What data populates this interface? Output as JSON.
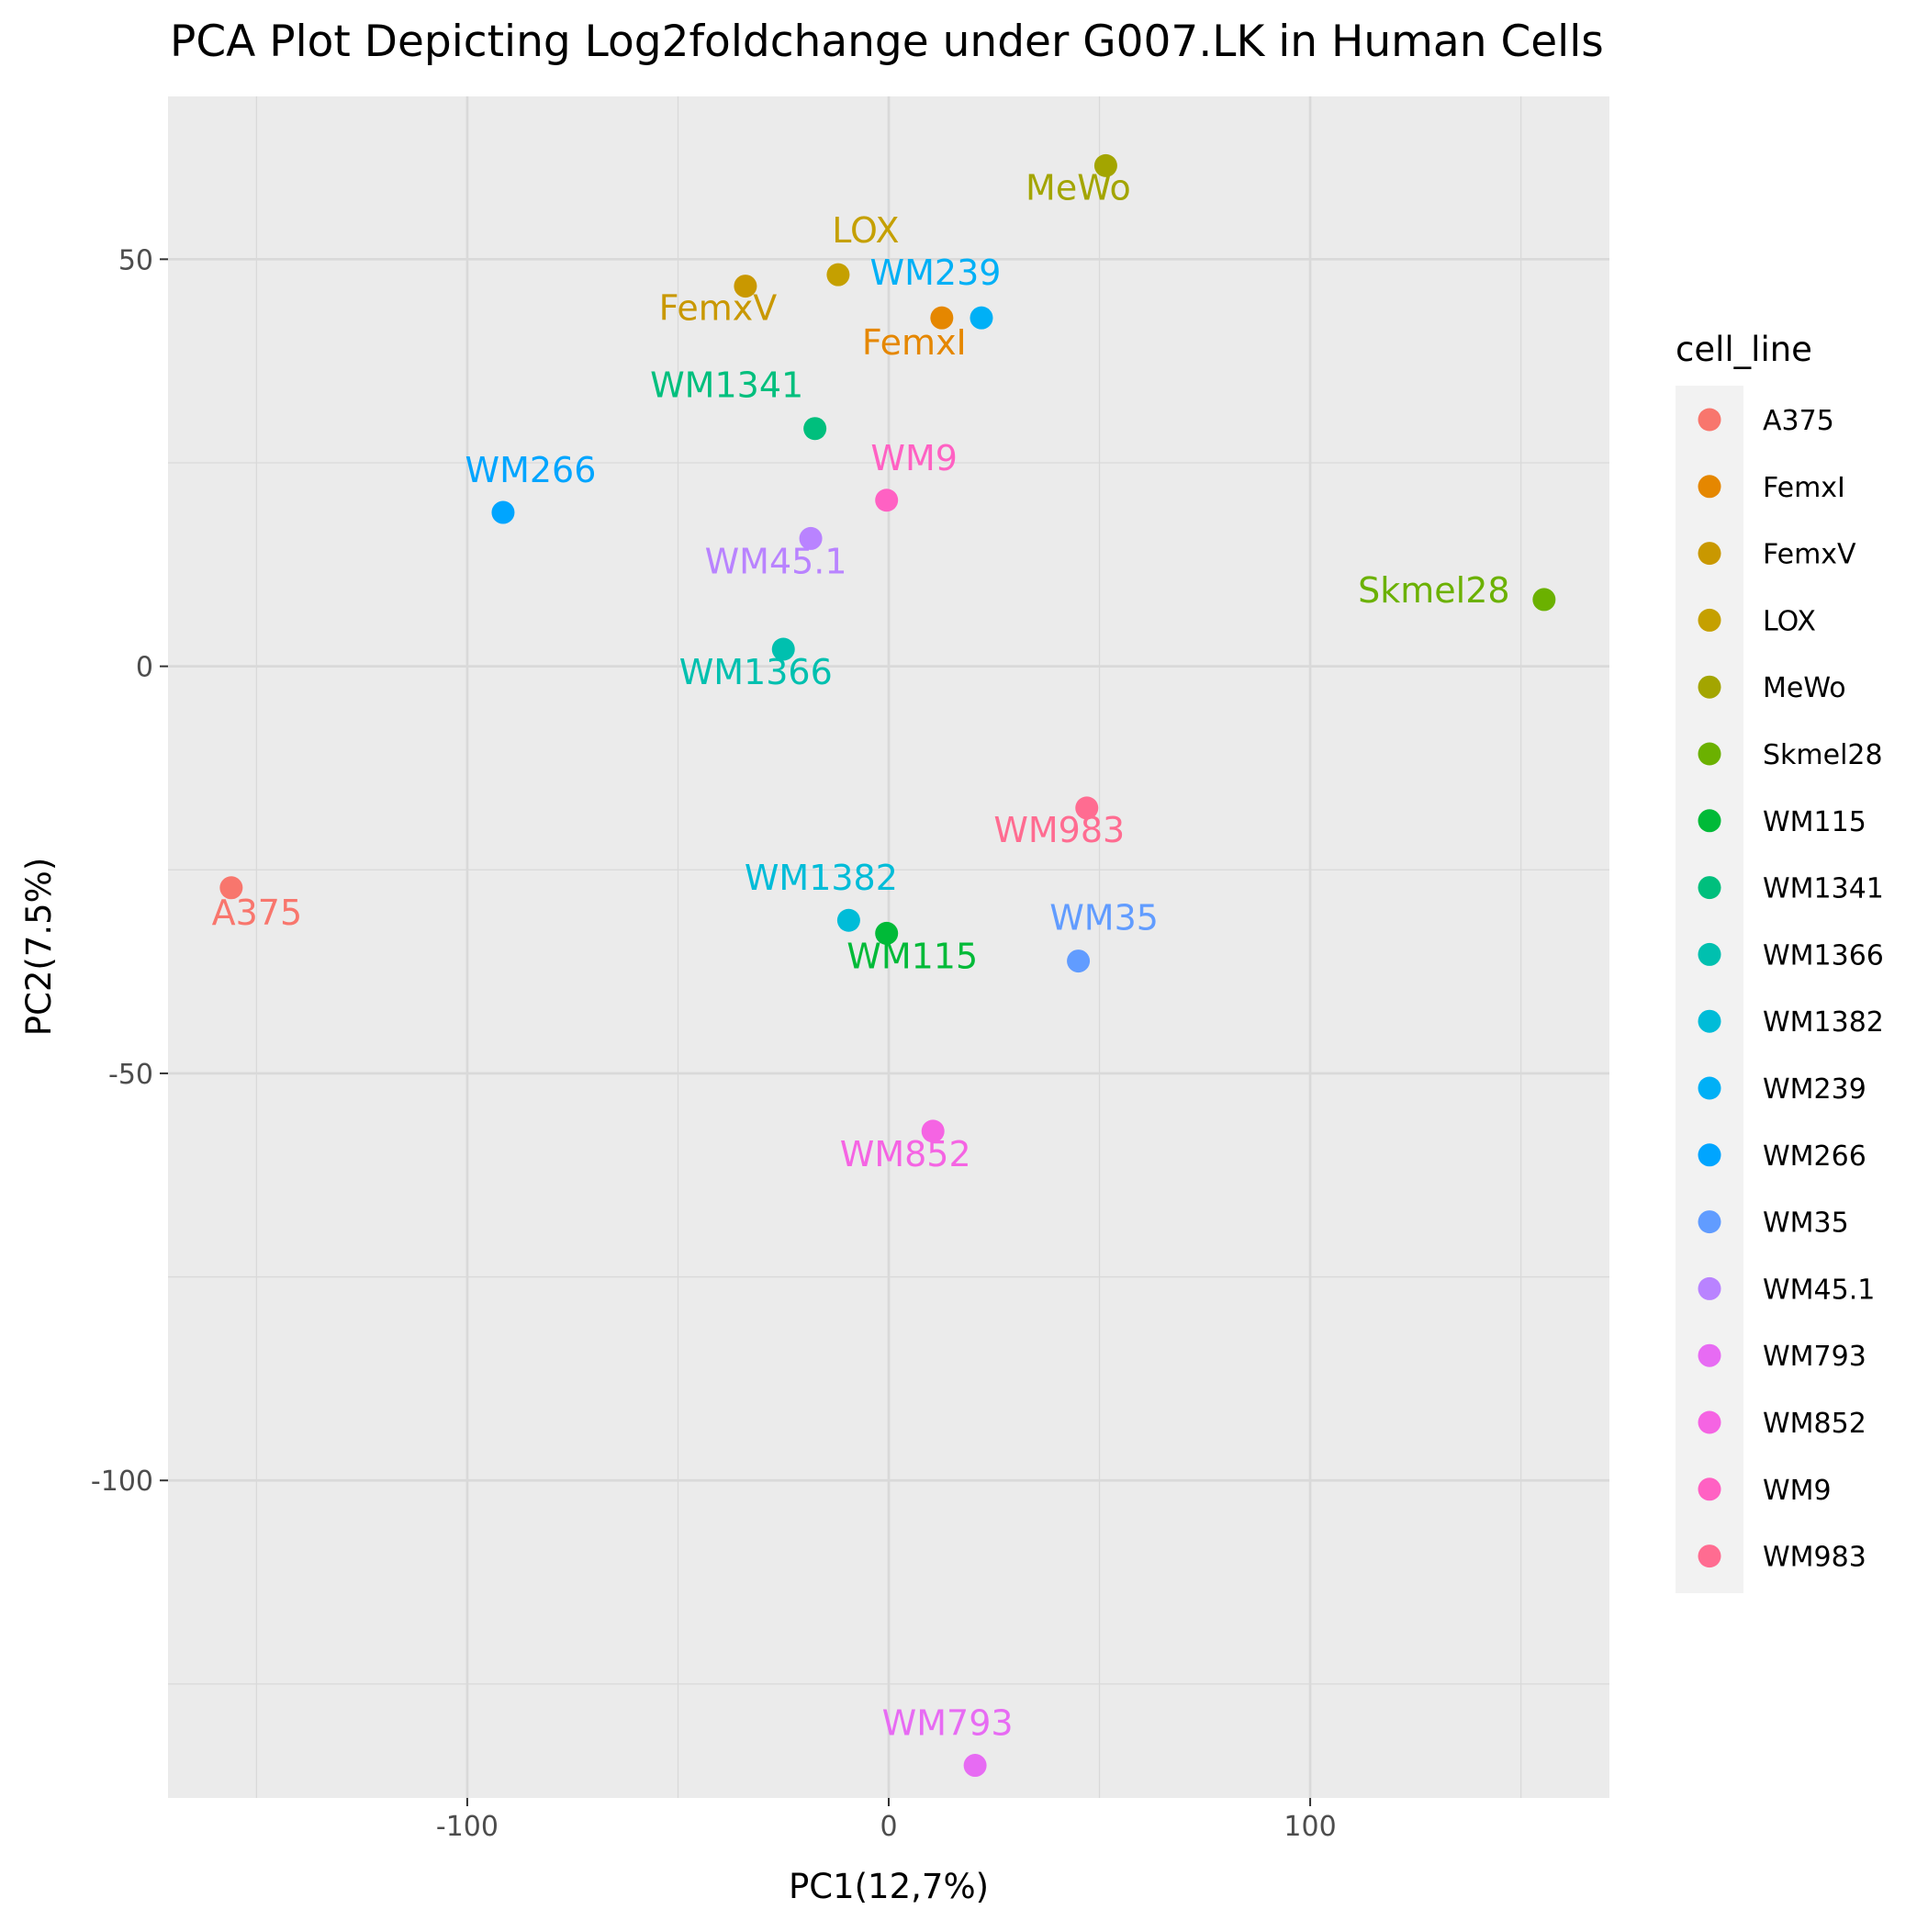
{
  "chart_data": {
    "type": "scatter",
    "title": "PCA Plot Depicting Log2foldchange under G007.LK in Human Cells",
    "xlabel": "PC1(12,7%)",
    "ylabel": "PC2(7.5%)",
    "xlim": [
      -171,
      171
    ],
    "ylim": [
      -139,
      70
    ],
    "xticks": [
      -100,
      0,
      100
    ],
    "yticks": [
      -100,
      -50,
      0,
      50
    ],
    "xtick_labels": [
      "-100",
      "0",
      "100"
    ],
    "ytick_labels": [
      "-100",
      "-50",
      "0",
      "50"
    ],
    "grid": true,
    "legend": {
      "title": "cell_line",
      "placement": "right"
    },
    "series": [
      {
        "name": "A375",
        "color": "#F8766D",
        "x": -156,
        "y": -27.2
      },
      {
        "name": "FemxI",
        "color": "#E58700",
        "x": 12.6,
        "y": 42.8
      },
      {
        "name": "FemxV",
        "color": "#C99800",
        "x": -34,
        "y": 46.7
      },
      {
        "name": "LOX",
        "color": "#C5A000",
        "x": -12,
        "y": 48.1
      },
      {
        "name": "MeWo",
        "color": "#A3A500",
        "x": 51.5,
        "y": 61.5
      },
      {
        "name": "Skmel28",
        "color": "#6BB100",
        "x": 155.5,
        "y": 8.2
      },
      {
        "name": "WM115",
        "color": "#00BA38",
        "x": -0.5,
        "y": -32.8
      },
      {
        "name": "WM1341",
        "color": "#00BF7D",
        "x": -17.5,
        "y": 29.2
      },
      {
        "name": "WM1366",
        "color": "#00C0AF",
        "x": -25,
        "y": 2.1
      },
      {
        "name": "WM1382",
        "color": "#00BCD8",
        "x": -9.5,
        "y": -31.2
      },
      {
        "name": "WM239",
        "color": "#00B0F6",
        "x": 22,
        "y": 42.8
      },
      {
        "name": "WM266",
        "color": "#00A5FF",
        "x": -91.5,
        "y": 18.9
      },
      {
        "name": "WM35",
        "color": "#619CFF",
        "x": 45,
        "y": -36.2
      },
      {
        "name": "WM45.1",
        "color": "#B983FF",
        "x": -18.5,
        "y": 15.7
      },
      {
        "name": "WM793",
        "color": "#E76BF3",
        "x": 20.5,
        "y": -135
      },
      {
        "name": "WM852",
        "color": "#F564E3",
        "x": 10.5,
        "y": -57.1
      },
      {
        "name": "WM9",
        "color": "#FF61C3",
        "x": -0.5,
        "y": 20.4
      },
      {
        "name": "WM983",
        "color": "#FF6C91",
        "x": 47,
        "y": -17.4
      }
    ]
  }
}
